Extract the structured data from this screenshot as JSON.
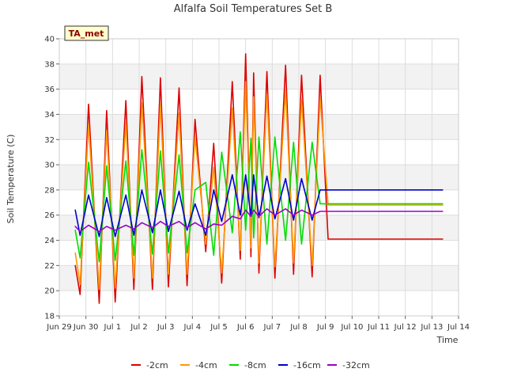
{
  "chart_data": {
    "type": "line",
    "title": "Alfalfa Soil Temperatures Set B",
    "xlabel": "Time",
    "ylabel": "Soil Temperature (C)",
    "badge": "TA_met",
    "xlim": [
      0,
      15
    ],
    "ylim": [
      18,
      40
    ],
    "yticks": [
      18,
      20,
      22,
      24,
      26,
      28,
      30,
      32,
      34,
      36,
      38,
      40
    ],
    "xticks": [
      {
        "v": 0,
        "label": "Jun 29"
      },
      {
        "v": 1,
        "label": "Jun 30"
      },
      {
        "v": 2,
        "label": "Jul 1"
      },
      {
        "v": 3,
        "label": "Jul 2"
      },
      {
        "v": 4,
        "label": "Jul 3"
      },
      {
        "v": 5,
        "label": "Jul 4"
      },
      {
        "v": 6,
        "label": "Jul 5"
      },
      {
        "v": 7,
        "label": "Jul 6"
      },
      {
        "v": 8,
        "label": "Jul 7"
      },
      {
        "v": 9,
        "label": "Jul 8"
      },
      {
        "v": 10,
        "label": "Jul 9"
      },
      {
        "v": 11,
        "label": "Jul 10"
      },
      {
        "v": 12,
        "label": "Jul 11"
      },
      {
        "v": 13,
        "label": "Jul 12"
      },
      {
        "v": 14,
        "label": "Jul 13"
      },
      {
        "v": 15,
        "label": "Jul 14"
      }
    ],
    "legend_position": "bottom",
    "grid": true,
    "series": [
      {
        "name": "-2cm",
        "color": "#dd0000",
        "x": [
          0.6,
          0.78,
          1.1,
          1.5,
          1.78,
          2.1,
          2.5,
          2.8,
          3.1,
          3.5,
          3.8,
          4.1,
          4.5,
          4.8,
          5.1,
          5.5,
          5.8,
          6.1,
          6.5,
          6.8,
          7.0,
          7.2,
          7.3,
          7.5,
          7.8,
          8.1,
          8.5,
          8.8,
          9.1,
          9.5,
          9.8,
          10.1,
          10.5,
          10.8,
          11.1,
          11.5,
          11.8,
          12.1,
          12.5,
          12.8,
          13.1,
          13.5,
          13.8,
          14.1,
          14.4
        ],
        "values": [
          22.0,
          19.7,
          34.8,
          19.0,
          34.3,
          19.1,
          35.1,
          20.1,
          37.0,
          20.1,
          36.9,
          20.3,
          36.1,
          20.4,
          33.6,
          23.1,
          31.7,
          20.6,
          36.6,
          22.5,
          38.8,
          22.7,
          37.3,
          21.4,
          37.4,
          21.0,
          37.9,
          21.3,
          37.1,
          21.1,
          37.1,
          24.1,
          24.1,
          24.1,
          24.1,
          24.1,
          24.1,
          24.1,
          24.1,
          24.1,
          24.1,
          24.1,
          24.1,
          24.1,
          24.1
        ]
      },
      {
        "name": "-4cm",
        "color": "#ff9900",
        "x": [
          0.6,
          0.78,
          1.1,
          1.5,
          1.78,
          2.1,
          2.5,
          2.8,
          3.1,
          3.5,
          3.8,
          4.1,
          4.5,
          4.8,
          5.1,
          5.5,
          5.8,
          6.1,
          6.5,
          6.8,
          7.0,
          7.2,
          7.3,
          7.5,
          7.8,
          8.1,
          8.5,
          8.8,
          9.1,
          9.5,
          9.8,
          10.1,
          10.5,
          10.8,
          11.1,
          11.5,
          11.8,
          12.1,
          12.5,
          12.8,
          13.1,
          13.5,
          13.8,
          14.1,
          14.4
        ],
        "values": [
          23.0,
          20.5,
          33.2,
          20.1,
          32.7,
          20.2,
          33.3,
          21.0,
          34.9,
          21.0,
          34.8,
          21.3,
          34.1,
          21.3,
          32.2,
          23.7,
          29.8,
          21.4,
          34.5,
          23.2,
          36.6,
          23.4,
          35.4,
          22.2,
          35.6,
          21.9,
          35.9,
          22.2,
          35.2,
          22.0,
          35.3,
          26.8,
          26.8,
          26.8,
          26.8,
          26.8,
          26.8,
          26.8,
          26.8,
          26.8,
          26.8,
          26.8,
          26.8,
          26.8,
          26.8
        ]
      },
      {
        "name": "-8cm",
        "color": "#00dd00",
        "x": [
          0.6,
          0.78,
          1.1,
          1.5,
          1.78,
          2.1,
          2.5,
          2.8,
          3.1,
          3.5,
          3.8,
          4.1,
          4.5,
          4.8,
          5.1,
          5.5,
          5.8,
          6.1,
          6.5,
          6.8,
          7.0,
          7.2,
          7.3,
          7.5,
          7.8,
          8.1,
          8.5,
          8.8,
          9.1,
          9.5,
          9.8,
          10.1,
          10.5,
          10.8,
          11.1,
          11.5,
          11.8,
          12.1,
          12.5,
          12.8,
          13.1,
          13.5,
          13.8,
          14.1,
          14.4
        ],
        "values": [
          24.8,
          22.6,
          30.2,
          22.3,
          29.9,
          22.4,
          30.3,
          22.8,
          31.2,
          22.9,
          31.1,
          23.0,
          30.8,
          23.0,
          28.0,
          28.6,
          22.8,
          31.0,
          24.6,
          32.6,
          24.8,
          32.1,
          24.2,
          32.2,
          23.7,
          32.2,
          24.0,
          31.8,
          23.7,
          31.8,
          26.9,
          26.9,
          26.9,
          26.9,
          26.9,
          26.9,
          26.9,
          26.9,
          26.9,
          26.9,
          26.9,
          26.9,
          26.9,
          26.9,
          26.9
        ]
      },
      {
        "name": "-16cm",
        "color": "#0000cc",
        "x": [
          0.6,
          0.78,
          1.1,
          1.5,
          1.78,
          2.1,
          2.5,
          2.8,
          3.1,
          3.5,
          3.8,
          4.1,
          4.5,
          4.8,
          5.1,
          5.5,
          5.8,
          6.1,
          6.5,
          6.8,
          7.0,
          7.2,
          7.3,
          7.5,
          7.8,
          8.1,
          8.5,
          8.8,
          9.1,
          9.5,
          9.8,
          10.1,
          10.5,
          10.8,
          11.1,
          11.5,
          11.8,
          12.1,
          12.5,
          12.8,
          13.1,
          13.5,
          13.8,
          14.1,
          14.4
        ],
        "values": [
          26.4,
          24.4,
          27.6,
          24.3,
          27.4,
          24.3,
          27.6,
          24.4,
          28.0,
          24.6,
          28.0,
          24.7,
          27.9,
          24.8,
          26.9,
          24.4,
          28.0,
          25.5,
          29.2,
          26.0,
          29.2,
          25.9,
          29.2,
          25.8,
          29.1,
          25.7,
          28.9,
          25.6,
          28.9,
          25.6,
          28.0,
          28.0,
          28.0,
          28.0,
          28.0,
          28.0,
          28.0,
          28.0,
          28.0,
          28.0,
          28.0,
          28.0,
          28.0,
          28.0,
          28.0
        ]
      },
      {
        "name": "-32cm",
        "color": "#9900cc",
        "x": [
          0.6,
          0.78,
          1.1,
          1.5,
          1.78,
          2.1,
          2.5,
          2.8,
          3.1,
          3.5,
          3.8,
          4.1,
          4.5,
          4.8,
          5.1,
          5.5,
          5.8,
          6.1,
          6.5,
          6.8,
          7.0,
          7.2,
          7.3,
          7.5,
          7.8,
          8.1,
          8.5,
          8.8,
          9.1,
          9.5,
          9.8,
          10.1,
          10.5,
          10.8,
          11.1,
          11.5,
          11.8,
          12.1,
          12.5,
          12.8,
          13.1,
          13.5,
          13.8,
          14.1,
          14.4
        ],
        "values": [
          25.1,
          24.7,
          25.2,
          24.7,
          25.1,
          24.8,
          25.2,
          24.9,
          25.4,
          25.0,
          25.5,
          25.1,
          25.5,
          25.0,
          25.4,
          24.9,
          25.3,
          25.2,
          25.9,
          25.7,
          26.4,
          25.9,
          26.4,
          25.9,
          26.5,
          26.0,
          26.5,
          26.0,
          26.4,
          26.0,
          26.3,
          26.3,
          26.3,
          26.3,
          26.3,
          26.3,
          26.3,
          26.3,
          26.3,
          26.3,
          26.3,
          26.3,
          26.3,
          26.3,
          26.3
        ]
      }
    ]
  }
}
